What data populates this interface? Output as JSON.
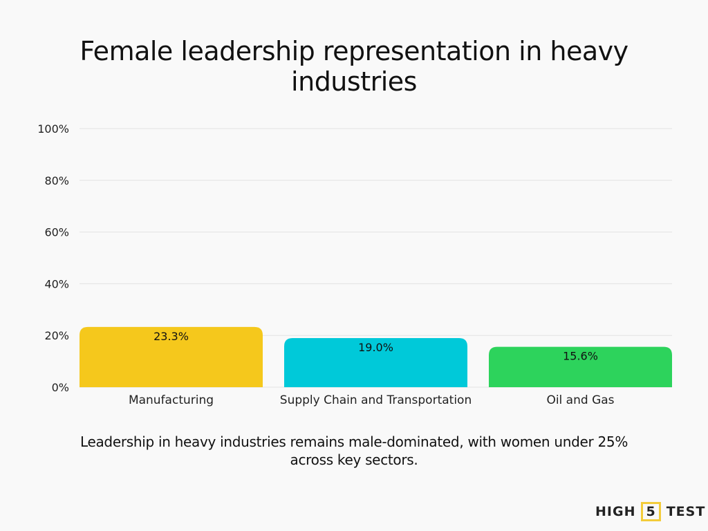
{
  "chart_data": {
    "type": "bar",
    "title": "Female leadership representation in heavy industries",
    "categories": [
      "Manufacturing",
      "Supply Chain and Transportation",
      "Oil and Gas"
    ],
    "values": [
      23.3,
      19.0,
      15.6
    ],
    "data_labels": [
      "23.3%",
      "19.0%",
      "15.6%"
    ],
    "colors": [
      "#f5c81c",
      "#00c9d9",
      "#2dd35c"
    ],
    "ylim": [
      0,
      100
    ],
    "yticks": [
      0,
      20,
      40,
      60,
      80,
      100
    ],
    "ytick_labels": [
      "0%",
      "20%",
      "40%",
      "60%",
      "80%",
      "100%"
    ],
    "xlabel": "",
    "ylabel": "",
    "grid": true,
    "legend": "none"
  },
  "caption": "Leadership in heavy industries remains male-dominated, with women under 25% across key sectors.",
  "logo": {
    "left": "HIGH",
    "mid": "5",
    "right": "TEST"
  }
}
